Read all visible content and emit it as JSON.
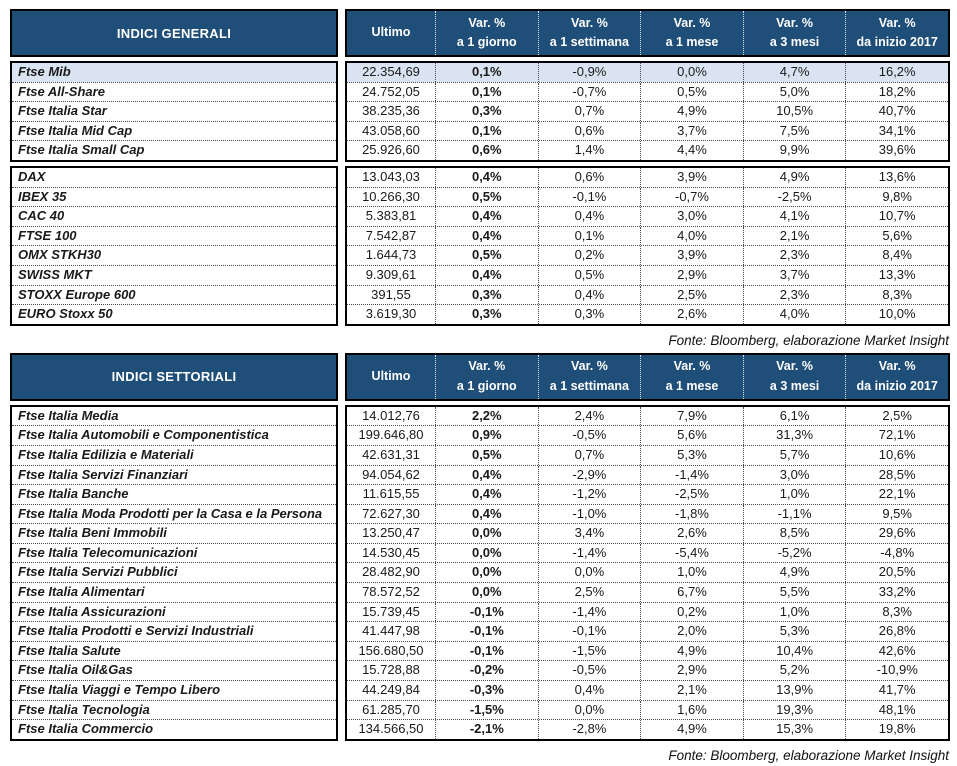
{
  "columns": {
    "ultimo": "Ultimo",
    "var_label": "Var. %",
    "periods": [
      "a 1 giorno",
      "a 1 settimana",
      "a 1 mese",
      "a 3 mesi",
      "da inizio 2017"
    ]
  },
  "source_note": "Fonte: Bloomberg, elaborazione Market Insight",
  "colors": {
    "header_bg": "#1F4E79",
    "header_text": "#FFFFFF",
    "highlight_row": "#DAE3F1",
    "border": "#000000",
    "text": "#1A1A1A"
  },
  "tables": [
    {
      "title": "INDICI GENERALI",
      "blocks": [
        {
          "rows": [
            {
              "name": "Ftse Mib",
              "ultimo": "22.354,69",
              "var_1d": "0,1%",
              "var_1w": "-0,9%",
              "var_1m": "0,0%",
              "var_3m": "4,7%",
              "var_ytd": "16,2%",
              "highlight": true
            },
            {
              "name": "Ftse All-Share",
              "ultimo": "24.752,05",
              "var_1d": "0,1%",
              "var_1w": "-0,7%",
              "var_1m": "0,5%",
              "var_3m": "5,0%",
              "var_ytd": "18,2%"
            },
            {
              "name": "Ftse Italia Star",
              "ultimo": "38.235,36",
              "var_1d": "0,3%",
              "var_1w": "0,7%",
              "var_1m": "4,9%",
              "var_3m": "10,5%",
              "var_ytd": "40,7%"
            },
            {
              "name": "Ftse Italia Mid Cap",
              "ultimo": "43.058,60",
              "var_1d": "0,1%",
              "var_1w": "0,6%",
              "var_1m": "3,7%",
              "var_3m": "7,5%",
              "var_ytd": "34,1%"
            },
            {
              "name": "Ftse Italia Small Cap",
              "ultimo": "25.926,60",
              "var_1d": "0,6%",
              "var_1w": "1,4%",
              "var_1m": "4,4%",
              "var_3m": "9,9%",
              "var_ytd": "39,6%"
            }
          ]
        },
        {
          "rows": [
            {
              "name": "DAX",
              "ultimo": "13.043,03",
              "var_1d": "0,4%",
              "var_1w": "0,6%",
              "var_1m": "3,9%",
              "var_3m": "4,9%",
              "var_ytd": "13,6%"
            },
            {
              "name": "IBEX 35",
              "ultimo": "10.266,30",
              "var_1d": "0,5%",
              "var_1w": "-0,1%",
              "var_1m": "-0,7%",
              "var_3m": "-2,5%",
              "var_ytd": "9,8%"
            },
            {
              "name": "CAC 40",
              "ultimo": "5.383,81",
              "var_1d": "0,4%",
              "var_1w": "0,4%",
              "var_1m": "3,0%",
              "var_3m": "4,1%",
              "var_ytd": "10,7%"
            },
            {
              "name": "FTSE 100",
              "ultimo": "7.542,87",
              "var_1d": "0,4%",
              "var_1w": "0,1%",
              "var_1m": "4,0%",
              "var_3m": "2,1%",
              "var_ytd": "5,6%"
            },
            {
              "name": "OMX STKH30",
              "ultimo": "1.644,73",
              "var_1d": "0,5%",
              "var_1w": "0,2%",
              "var_1m": "3,9%",
              "var_3m": "2,3%",
              "var_ytd": "8,4%"
            },
            {
              "name": "SWISS MKT",
              "ultimo": "9.309,61",
              "var_1d": "0,4%",
              "var_1w": "0,5%",
              "var_1m": "2,9%",
              "var_3m": "3,7%",
              "var_ytd": "13,3%"
            },
            {
              "name": "STOXX Europe 600",
              "ultimo": "391,55",
              "var_1d": "0,3%",
              "var_1w": "0,4%",
              "var_1m": "2,5%",
              "var_3m": "2,3%",
              "var_ytd": "8,3%"
            },
            {
              "name": "EURO Stoxx 50",
              "ultimo": "3.619,30",
              "var_1d": "0,3%",
              "var_1w": "0,3%",
              "var_1m": "2,6%",
              "var_3m": "4,0%",
              "var_ytd": "10,0%"
            }
          ]
        }
      ]
    },
    {
      "title": "INDICI SETTORIALI",
      "blocks": [
        {
          "rows": [
            {
              "name": "Ftse Italia Media",
              "ultimo": "14.012,76",
              "var_1d": "2,2%",
              "var_1w": "2,4%",
              "var_1m": "7,9%",
              "var_3m": "6,1%",
              "var_ytd": "2,5%"
            },
            {
              "name": "Ftse Italia Automobili e Componentistica",
              "ultimo": "199.646,80",
              "var_1d": "0,9%",
              "var_1w": "-0,5%",
              "var_1m": "5,6%",
              "var_3m": "31,3%",
              "var_ytd": "72,1%"
            },
            {
              "name": "Ftse Italia Edilizia e Materiali",
              "ultimo": "42.631,31",
              "var_1d": "0,5%",
              "var_1w": "0,7%",
              "var_1m": "5,3%",
              "var_3m": "5,7%",
              "var_ytd": "10,6%"
            },
            {
              "name": "Ftse Italia Servizi Finanziari",
              "ultimo": "94.054,62",
              "var_1d": "0,4%",
              "var_1w": "-2,9%",
              "var_1m": "-1,4%",
              "var_3m": "3,0%",
              "var_ytd": "28,5%"
            },
            {
              "name": "Ftse Italia Banche",
              "ultimo": "11.615,55",
              "var_1d": "0,4%",
              "var_1w": "-1,2%",
              "var_1m": "-2,5%",
              "var_3m": "1,0%",
              "var_ytd": "22,1%"
            },
            {
              "name": "Ftse Italia Moda Prodotti per la Casa e la Persona",
              "ultimo": "72.627,30",
              "var_1d": "0,4%",
              "var_1w": "-1,0%",
              "var_1m": "-1,8%",
              "var_3m": "-1,1%",
              "var_ytd": "9,5%"
            },
            {
              "name": "Ftse Italia Beni Immobili",
              "ultimo": "13.250,47",
              "var_1d": "0,0%",
              "var_1w": "3,4%",
              "var_1m": "2,6%",
              "var_3m": "8,5%",
              "var_ytd": "29,6%"
            },
            {
              "name": "Ftse Italia Telecomunicazioni",
              "ultimo": "14.530,45",
              "var_1d": "0,0%",
              "var_1w": "-1,4%",
              "var_1m": "-5,4%",
              "var_3m": "-5,2%",
              "var_ytd": "-4,8%"
            },
            {
              "name": "Ftse Italia Servizi Pubblici",
              "ultimo": "28.482,90",
              "var_1d": "0,0%",
              "var_1w": "0,0%",
              "var_1m": "1,0%",
              "var_3m": "4,9%",
              "var_ytd": "20,5%"
            },
            {
              "name": "Ftse Italia Alimentari",
              "ultimo": "78.572,52",
              "var_1d": "0,0%",
              "var_1w": "2,5%",
              "var_1m": "6,7%",
              "var_3m": "5,5%",
              "var_ytd": "33,2%"
            },
            {
              "name": "Ftse Italia Assicurazioni",
              "ultimo": "15.739,45",
              "var_1d": "-0,1%",
              "var_1w": "-1,4%",
              "var_1m": "0,2%",
              "var_3m": "1,0%",
              "var_ytd": "8,3%"
            },
            {
              "name": "Ftse Italia Prodotti e Servizi Industriali",
              "ultimo": "41.447,98",
              "var_1d": "-0,1%",
              "var_1w": "-0,1%",
              "var_1m": "2,0%",
              "var_3m": "5,3%",
              "var_ytd": "26,8%"
            },
            {
              "name": "Ftse Italia Salute",
              "ultimo": "156.680,50",
              "var_1d": "-0,1%",
              "var_1w": "-1,5%",
              "var_1m": "4,9%",
              "var_3m": "10,4%",
              "var_ytd": "42,6%"
            },
            {
              "name": "Ftse Italia Oil&Gas",
              "ultimo": "15.728,88",
              "var_1d": "-0,2%",
              "var_1w": "-0,5%",
              "var_1m": "2,9%",
              "var_3m": "5,2%",
              "var_ytd": "-10,9%"
            },
            {
              "name": "Ftse Italia Viaggi e Tempo Libero",
              "ultimo": "44.249,84",
              "var_1d": "-0,3%",
              "var_1w": "0,4%",
              "var_1m": "2,1%",
              "var_3m": "13,9%",
              "var_ytd": "41,7%"
            },
            {
              "name": "Ftse Italia Tecnologia",
              "ultimo": "61.285,70",
              "var_1d": "-1,5%",
              "var_1w": "0,0%",
              "var_1m": "1,6%",
              "var_3m": "19,3%",
              "var_ytd": "48,1%"
            },
            {
              "name": "Ftse Italia Commercio",
              "ultimo": "134.566,50",
              "var_1d": "-2,1%",
              "var_1w": "-2,8%",
              "var_1m": "4,9%",
              "var_3m": "15,3%",
              "var_ytd": "19,8%"
            }
          ]
        }
      ]
    }
  ]
}
